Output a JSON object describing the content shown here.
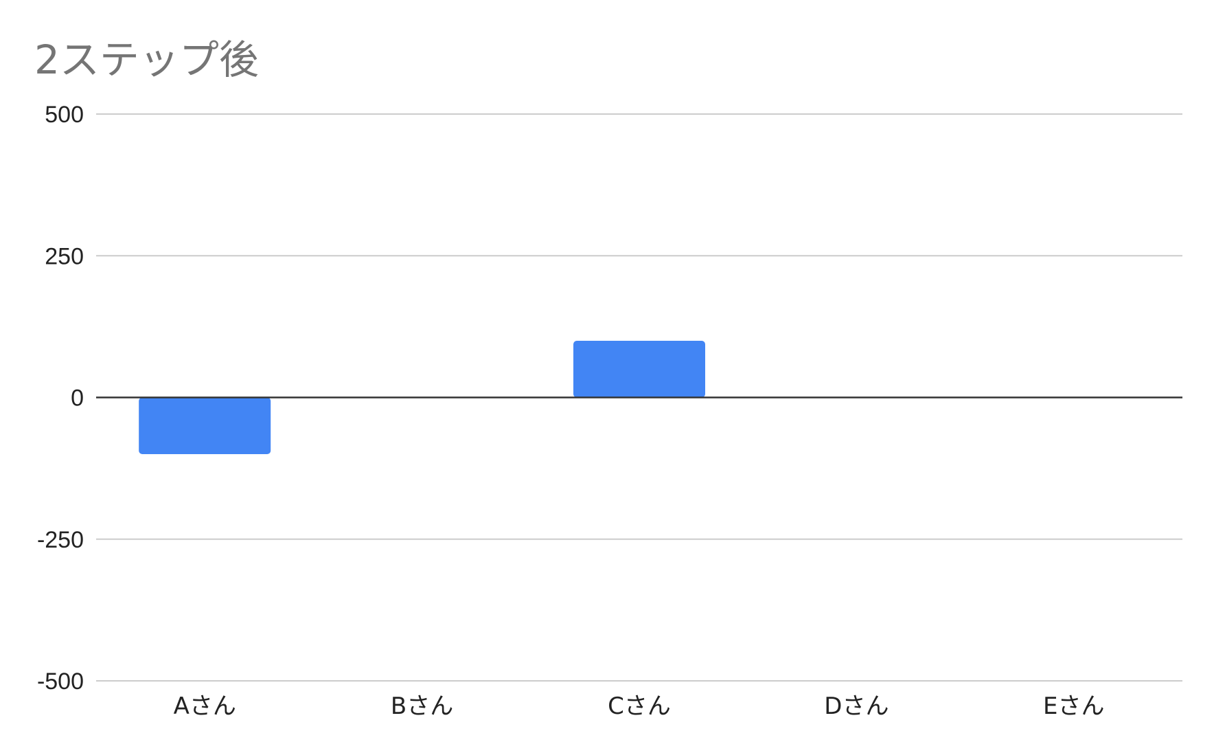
{
  "chart_data": {
    "type": "bar",
    "title": "2ステップ後",
    "xlabel": "",
    "ylabel": "",
    "categories": [
      "Aさん",
      "Bさん",
      "Cさん",
      "Dさん",
      "Eさん"
    ],
    "values": [
      -100,
      0,
      100,
      0,
      0
    ],
    "ylim": [
      -500,
      500
    ],
    "yticks": [
      500,
      250,
      0,
      -250,
      -500
    ],
    "ytick_labels": [
      "500",
      "250",
      "0",
      "-250",
      "-500"
    ],
    "grid": true,
    "legend": "none",
    "bar_color": "#4285f4",
    "grid_color": "#cccccc",
    "zero_line_color": "#333333"
  }
}
